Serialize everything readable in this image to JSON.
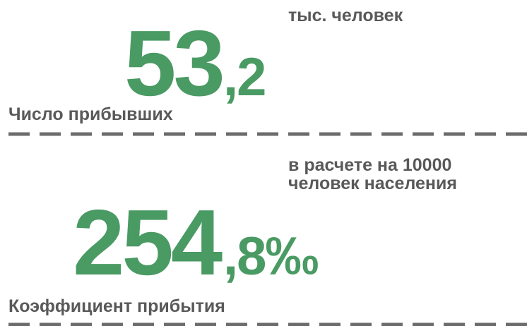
{
  "blocks": [
    {
      "unit": [
        "тыс. человек"
      ],
      "integer": "53",
      "fraction": ",2",
      "label": "Число прибывших"
    },
    {
      "unit": [
        "в расчете на 10000",
        "человек населения"
      ],
      "integer": "254",
      "fraction": ",8‰",
      "label": "Коэффициент прибытия"
    }
  ]
}
